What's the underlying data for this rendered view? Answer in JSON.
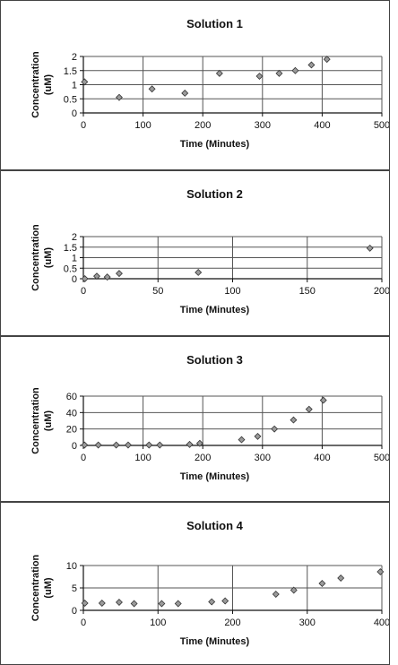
{
  "chart_data": [
    {
      "type": "scatter",
      "title": "Solution 1",
      "xlabel": "Time (Minutes)",
      "ylabel": "Concentration (uM)",
      "xlim": [
        0,
        500
      ],
      "ylim": [
        0,
        2
      ],
      "xticks": [
        0,
        100,
        200,
        300,
        400,
        500
      ],
      "yticks": [
        0,
        0.5,
        1,
        1.5,
        2
      ],
      "xtick_labels": [
        "0",
        "100",
        "200",
        "300",
        "400",
        "500"
      ],
      "ytick_labels": [
        "0",
        "0.5",
        "1",
        "1.5",
        "2"
      ],
      "grid": true,
      "points": [
        [
          2,
          1.1
        ],
        [
          60,
          0.55
        ],
        [
          115,
          0.85
        ],
        [
          170,
          0.7
        ],
        [
          228,
          1.4
        ],
        [
          295,
          1.3
        ],
        [
          328,
          1.4
        ],
        [
          355,
          1.5
        ],
        [
          382,
          1.7
        ],
        [
          408,
          1.9
        ]
      ]
    },
    {
      "type": "scatter",
      "title": "Solution 2",
      "xlabel": "Time (Minutes)",
      "ylabel": "Concentration (uM)",
      "xlim": [
        0,
        200
      ],
      "ylim": [
        0,
        2
      ],
      "xticks": [
        0,
        50,
        100,
        150,
        200
      ],
      "yticks": [
        0,
        0.5,
        1,
        1.5,
        2
      ],
      "xtick_labels": [
        "0",
        "50",
        "100",
        "150",
        "200"
      ],
      "ytick_labels": [
        "0",
        "0.5",
        "1",
        "1.5",
        "2"
      ],
      "grid": true,
      "points": [
        [
          1,
          0.0
        ],
        [
          9,
          0.12
        ],
        [
          16,
          0.08
        ],
        [
          24,
          0.25
        ],
        [
          77,
          0.3
        ],
        [
          192,
          1.45
        ]
      ]
    },
    {
      "type": "scatter",
      "title": "Solution 3",
      "xlabel": "Time (Minutes)",
      "ylabel": "Concentration (uM)",
      "xlim": [
        0,
        500
      ],
      "ylim": [
        0,
        60
      ],
      "xticks": [
        0,
        100,
        200,
        300,
        400,
        500
      ],
      "yticks": [
        0,
        20,
        40,
        60
      ],
      "xtick_labels": [
        "0",
        "100",
        "200",
        "300",
        "400",
        "500"
      ],
      "ytick_labels": [
        "0",
        "20",
        "40",
        "60"
      ],
      "grid": true,
      "points": [
        [
          2,
          0.5
        ],
        [
          25,
          0.5
        ],
        [
          55,
          0.5
        ],
        [
          75,
          0.5
        ],
        [
          110,
          0.5
        ],
        [
          128,
          0.5
        ],
        [
          178,
          1.2
        ],
        [
          195,
          2.5
        ],
        [
          265,
          7
        ],
        [
          292,
          11
        ],
        [
          320,
          20
        ],
        [
          352,
          31
        ],
        [
          378,
          44
        ],
        [
          402,
          55
        ]
      ]
    },
    {
      "type": "scatter",
      "title": "Solution 4",
      "xlabel": "Time (Minutes)",
      "ylabel": "Concentration (uM)",
      "xlim": [
        0,
        400
      ],
      "ylim": [
        0,
        10
      ],
      "xticks": [
        0,
        100,
        200,
        300,
        400
      ],
      "yticks": [
        0,
        5,
        10
      ],
      "xtick_labels": [
        "0",
        "100",
        "200",
        "300",
        "400"
      ],
      "ytick_labels": [
        "0",
        "5",
        "10"
      ],
      "grid": true,
      "points": [
        [
          2,
          1.6
        ],
        [
          25,
          1.6
        ],
        [
          48,
          1.8
        ],
        [
          68,
          1.5
        ],
        [
          105,
          1.5
        ],
        [
          127,
          1.5
        ],
        [
          172,
          1.9
        ],
        [
          190,
          2.1
        ],
        [
          258,
          3.6
        ],
        [
          282,
          4.5
        ],
        [
          320,
          6.0
        ],
        [
          345,
          7.2
        ],
        [
          398,
          8.6
        ]
      ]
    }
  ]
}
